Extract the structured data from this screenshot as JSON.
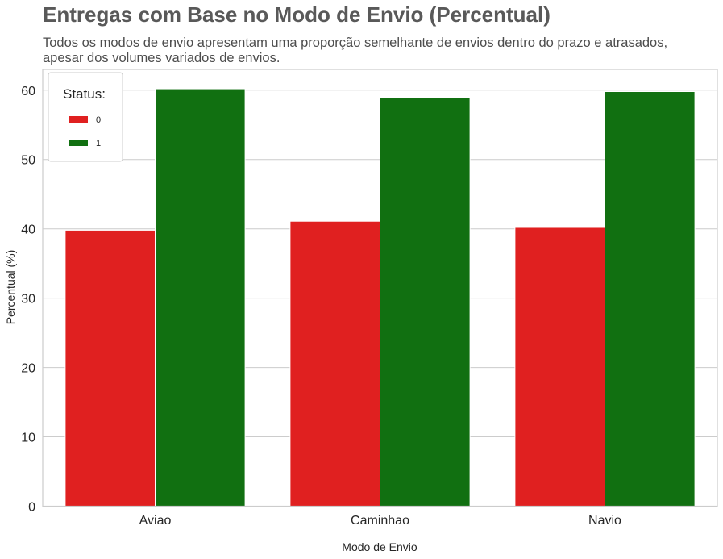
{
  "chart_data": {
    "type": "bar",
    "title": "Entregas com Base no Modo de Envio (Percentual)",
    "subtitle": "Todos os modos de envio apresentam uma proporção semelhante de envios dentro do prazo e atrasados, apesar dos volumes variados de envios.",
    "xlabel": "Modo de Envio",
    "ylabel": "Percentual (%)",
    "categories": [
      "Aviao",
      "Caminhao",
      "Navio"
    ],
    "ylim": [
      0,
      63
    ],
    "yticks": [
      0,
      10,
      20,
      30,
      40,
      50,
      60
    ],
    "grid": true,
    "legend": {
      "title": "Status:",
      "placement": "top-left"
    },
    "series": [
      {
        "name": "0",
        "color": "#e02020",
        "values": [
          39.8,
          41.1,
          40.2
        ]
      },
      {
        "name": "1",
        "color": "#117011",
        "values": [
          60.2,
          58.9,
          59.8
        ]
      }
    ]
  }
}
